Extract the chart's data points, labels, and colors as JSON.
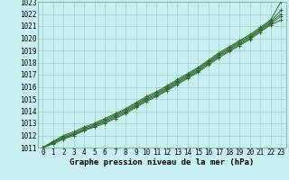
{
  "title": "Graphe pression niveau de la mer (hPa)",
  "xlabel": "Graphe pression niveau de la mer (hPa)",
  "x": [
    0,
    1,
    2,
    3,
    4,
    5,
    6,
    7,
    8,
    9,
    10,
    11,
    12,
    13,
    14,
    15,
    16,
    17,
    18,
    19,
    20,
    21,
    22,
    23
  ],
  "series": [
    [
      1011.0,
      1011.5,
      1012.0,
      1012.3,
      1012.7,
      1013.0,
      1013.4,
      1013.8,
      1014.2,
      1014.7,
      1015.2,
      1015.6,
      1016.1,
      1016.6,
      1017.1,
      1017.6,
      1018.2,
      1018.8,
      1019.3,
      1019.8,
      1020.3,
      1020.9,
      1021.5,
      1023.0
    ],
    [
      1011.0,
      1011.5,
      1011.9,
      1012.2,
      1012.6,
      1012.9,
      1013.3,
      1013.7,
      1014.1,
      1014.6,
      1015.1,
      1015.5,
      1016.0,
      1016.5,
      1017.0,
      1017.5,
      1018.1,
      1018.7,
      1019.2,
      1019.7,
      1020.2,
      1020.8,
      1021.4,
      1022.3
    ],
    [
      1011.0,
      1011.4,
      1011.8,
      1012.1,
      1012.5,
      1012.8,
      1013.2,
      1013.6,
      1014.0,
      1014.5,
      1015.0,
      1015.4,
      1015.9,
      1016.4,
      1016.9,
      1017.4,
      1018.0,
      1018.6,
      1019.1,
      1019.6,
      1020.1,
      1020.7,
      1021.3,
      1022.0
    ],
    [
      1011.0,
      1011.4,
      1011.8,
      1012.1,
      1012.4,
      1012.8,
      1013.1,
      1013.5,
      1013.9,
      1014.4,
      1014.9,
      1015.3,
      1015.8,
      1016.3,
      1016.8,
      1017.3,
      1017.9,
      1018.5,
      1019.0,
      1019.5,
      1020.0,
      1020.6,
      1021.2,
      1021.8
    ],
    [
      1011.0,
      1011.3,
      1011.7,
      1012.0,
      1012.4,
      1012.7,
      1013.0,
      1013.4,
      1013.8,
      1014.3,
      1014.8,
      1015.2,
      1015.7,
      1016.2,
      1016.7,
      1017.2,
      1017.8,
      1018.4,
      1018.9,
      1019.4,
      1019.9,
      1020.5,
      1021.1,
      1021.5
    ]
  ],
  "line_color": "#2d6a2d",
  "marker_color": "#2d6a2d",
  "bg_color": "#c8eef0",
  "grid_color": "#9ecfca",
  "ylim": [
    1011,
    1023
  ],
  "xlim": [
    0,
    23
  ],
  "yticks": [
    1011,
    1012,
    1013,
    1014,
    1015,
    1016,
    1017,
    1018,
    1019,
    1020,
    1021,
    1022,
    1023
  ],
  "xticks": [
    0,
    1,
    2,
    3,
    4,
    5,
    6,
    7,
    8,
    9,
    10,
    11,
    12,
    13,
    14,
    15,
    16,
    17,
    18,
    19,
    20,
    21,
    22,
    23
  ],
  "title_fontsize": 6.5,
  "tick_fontsize": 5.5,
  "marker": "+"
}
